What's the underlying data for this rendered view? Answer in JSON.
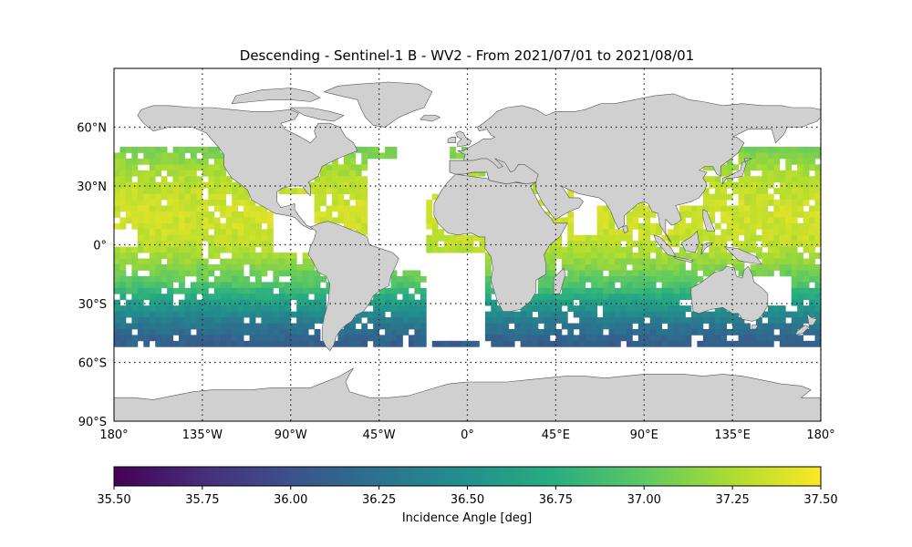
{
  "title": "Descending - Sentinel-1 B - WV2 - From 2021/07/01 to 2021/08/01",
  "map": {
    "projection": "plate-carree",
    "lon_range": [
      -180,
      180
    ],
    "lat_range": [
      -90,
      90
    ],
    "grid": "dotted",
    "land_color": "#d0d0d0",
    "lon_ticks": [
      {
        "value": -180,
        "label": "180°"
      },
      {
        "value": -135,
        "label": "135°W"
      },
      {
        "value": -90,
        "label": "90°W"
      },
      {
        "value": -45,
        "label": "45°W"
      },
      {
        "value": 0,
        "label": "0°"
      },
      {
        "value": 45,
        "label": "45°E"
      },
      {
        "value": 90,
        "label": "90°E"
      },
      {
        "value": 135,
        "label": "135°E"
      },
      {
        "value": 180,
        "label": "180°"
      }
    ],
    "lat_ticks": [
      {
        "value": 60,
        "label": "60°N"
      },
      {
        "value": 30,
        "label": "30°N"
      },
      {
        "value": 0,
        "label": "0°"
      },
      {
        "value": -30,
        "label": "30°S"
      },
      {
        "value": -60,
        "label": "60°S"
      },
      {
        "value": -90,
        "label": "90°S"
      }
    ]
  },
  "colorbar": {
    "label": "Incidence Angle [deg]",
    "colormap": "viridis",
    "range": [
      35.5,
      37.5
    ],
    "ticks": [
      "35.50",
      "35.75",
      "36.00",
      "36.25",
      "36.50",
      "36.75",
      "37.00",
      "37.25",
      "37.50"
    ]
  },
  "data_grid": {
    "cell_deg": 3,
    "lat_extent": [
      -50,
      50
    ],
    "incidence_by_lat": [
      {
        "lat": 50,
        "value": 37.05
      },
      {
        "lat": 40,
        "value": 37.2
      },
      {
        "lat": 30,
        "value": 37.3
      },
      {
        "lat": 20,
        "value": 37.35
      },
      {
        "lat": 10,
        "value": 37.35
      },
      {
        "lat": 0,
        "value": 37.3
      },
      {
        "lat": -10,
        "value": 37.15
      },
      {
        "lat": -20,
        "value": 36.95
      },
      {
        "lat": -30,
        "value": 36.6
      },
      {
        "lat": -40,
        "value": 36.3
      },
      {
        "lat": -50,
        "value": 36.1
      }
    ]
  }
}
